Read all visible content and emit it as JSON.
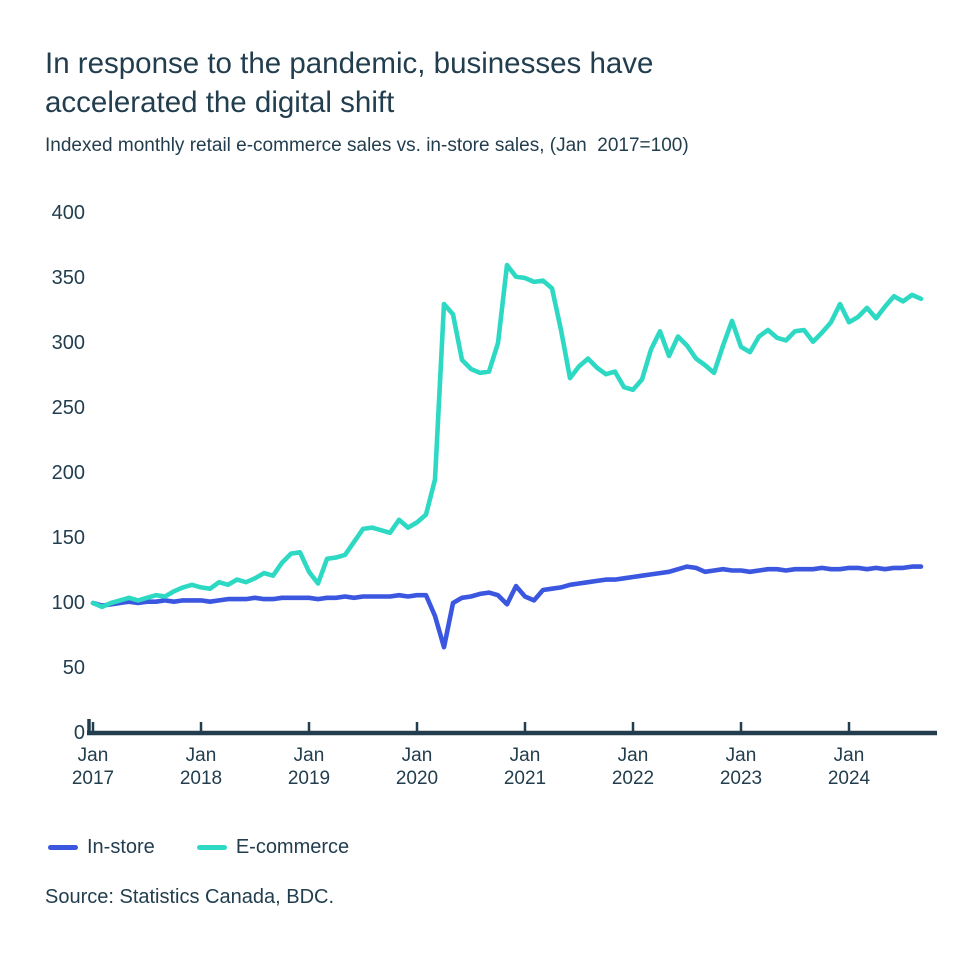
{
  "header": {
    "title_lines": [
      "In response to the pandemic, businesses have",
      "accelerated the digital shift"
    ],
    "subtitle": "Indexed monthly retail e-commerce sales vs. in-store sales, (Jan  2017=100)"
  },
  "chart_data": {
    "type": "line",
    "title": "In response to the pandemic, businesses have accelerated the digital shift",
    "subtitle": "Indexed monthly retail e-commerce sales vs. in-store sales, (Jan 2017=100)",
    "x_unit": "month",
    "x_range": [
      "Jan 2017",
      "Sep 2024"
    ],
    "x_tick_labels": [
      {
        "month": "Jan",
        "year": "2017"
      },
      {
        "month": "Jan",
        "year": "2018"
      },
      {
        "month": "Jan",
        "year": "2019"
      },
      {
        "month": "Jan",
        "year": "2020"
      },
      {
        "month": "Jan",
        "year": "2021"
      },
      {
        "month": "Jan",
        "year": "2022"
      },
      {
        "month": "Jan",
        "year": "2023"
      },
      {
        "month": "Jan",
        "year": "2024"
      }
    ],
    "y_ticks": [
      0,
      50,
      100,
      150,
      200,
      250,
      300,
      350,
      400
    ],
    "ylim": [
      0,
      400
    ],
    "grid": false,
    "legend_position": "bottom",
    "series": [
      {
        "name": "In-store",
        "color": "#3b57e0",
        "values": [
          100,
          98,
          99,
          100,
          101,
          100,
          101,
          101,
          102,
          101,
          102,
          102,
          102,
          101,
          102,
          103,
          103,
          103,
          104,
          103,
          103,
          104,
          104,
          104,
          104,
          103,
          104,
          104,
          105,
          104,
          105,
          105,
          105,
          105,
          106,
          105,
          106,
          106,
          90,
          66,
          100,
          104,
          105,
          107,
          108,
          106,
          99,
          113,
          105,
          102,
          110,
          111,
          112,
          114,
          115,
          116,
          117,
          118,
          118,
          119,
          120,
          121,
          122,
          123,
          124,
          126,
          128,
          127,
          124,
          125,
          126,
          125,
          125,
          124,
          125,
          126,
          126,
          125,
          126,
          126,
          126,
          127,
          126,
          126,
          127,
          127,
          126,
          127,
          126,
          127,
          127,
          128,
          128
        ]
      },
      {
        "name": "E-commerce",
        "color": "#2ed9c4",
        "values": [
          100,
          97,
          100,
          102,
          104,
          102,
          104,
          106,
          105,
          109,
          112,
          114,
          112,
          111,
          116,
          114,
          118,
          116,
          119,
          123,
          121,
          131,
          138,
          139,
          124,
          115,
          134,
          135,
          137,
          147,
          157,
          158,
          156,
          154,
          164,
          158,
          162,
          168,
          195,
          330,
          322,
          287,
          280,
          277,
          278,
          300,
          360,
          351,
          350,
          347,
          348,
          342,
          310,
          273,
          282,
          288,
          281,
          276,
          278,
          266,
          264,
          272,
          295,
          309,
          290,
          305,
          298,
          288,
          283,
          277,
          298,
          317,
          297,
          293,
          305,
          310,
          304,
          302,
          309,
          310,
          301,
          308,
          316,
          330,
          316,
          320,
          327,
          319,
          328,
          336,
          332,
          337,
          334
        ]
      }
    ]
  },
  "legend": {
    "items": [
      {
        "label": "In-store",
        "color": "#3b57e0"
      },
      {
        "label": "E-commerce",
        "color": "#2ed9c4"
      }
    ]
  },
  "source": "Source: Statistics Canada, BDC.",
  "colors": {
    "text": "#223e4e",
    "axis": "#223e4e",
    "in_store": "#3b57e0",
    "e_commerce": "#2ed9c4",
    "background": "#ffffff"
  }
}
